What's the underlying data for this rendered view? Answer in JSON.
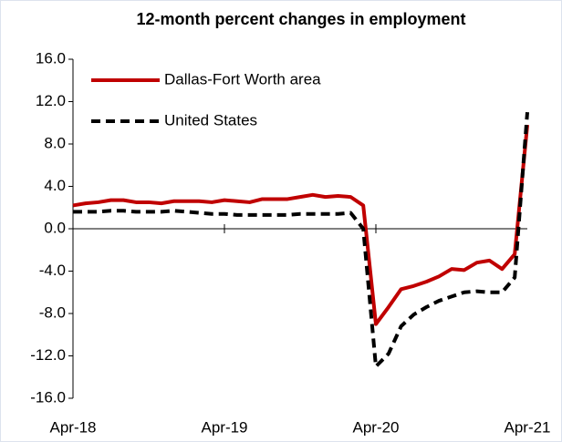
{
  "chart_data": {
    "type": "line",
    "title": "12-month percent changes in employment",
    "categories": [
      "Apr-18",
      null,
      null,
      null,
      null,
      null,
      null,
      null,
      null,
      null,
      null,
      null,
      "Apr-19",
      null,
      null,
      null,
      null,
      null,
      null,
      null,
      null,
      null,
      null,
      null,
      "Apr-20",
      null,
      null,
      null,
      null,
      null,
      null,
      null,
      null,
      null,
      null,
      null,
      "Apr-21"
    ],
    "series": [
      {
        "name": "Dallas-Fort Worth area",
        "color": "#c00000",
        "dash": false,
        "values": [
          2.2,
          2.4,
          2.5,
          2.7,
          2.7,
          2.5,
          2.5,
          2.4,
          2.6,
          2.6,
          2.6,
          2.5,
          2.7,
          2.6,
          2.5,
          2.8,
          2.8,
          2.8,
          3.0,
          3.2,
          3.0,
          3.1,
          3.0,
          2.2,
          -9.0,
          -7.4,
          -5.7,
          -5.4,
          -5.0,
          -4.5,
          -3.8,
          -3.9,
          -3.2,
          -3.0,
          -3.8,
          -2.4,
          9.8
        ]
      },
      {
        "name": "United States",
        "color": "#000000",
        "dash": true,
        "values": [
          1.6,
          1.6,
          1.6,
          1.7,
          1.7,
          1.6,
          1.6,
          1.6,
          1.7,
          1.6,
          1.5,
          1.4,
          1.4,
          1.3,
          1.3,
          1.3,
          1.3,
          1.3,
          1.4,
          1.4,
          1.4,
          1.4,
          1.5,
          0.0,
          -13.0,
          -11.8,
          -9.2,
          -8.1,
          -7.4,
          -6.8,
          -6.4,
          -6.0,
          -5.9,
          -6.0,
          -6.0,
          -4.6,
          11.0
        ]
      }
    ],
    "ylim": [
      -16,
      16
    ],
    "yticks": [
      {
        "value": -16,
        "label": "-16.0"
      },
      {
        "value": -12,
        "label": "-12.0"
      },
      {
        "value": -8,
        "label": "-8.0"
      },
      {
        "value": -4,
        "label": "-4.0"
      },
      {
        "value": 0,
        "label": "0.0"
      },
      {
        "value": 4,
        "label": "4.0"
      },
      {
        "value": 8,
        "label": "8.0"
      },
      {
        "value": 12,
        "label": "12.0"
      },
      {
        "value": 16,
        "label": "16.0"
      }
    ],
    "legend": "upper left"
  }
}
